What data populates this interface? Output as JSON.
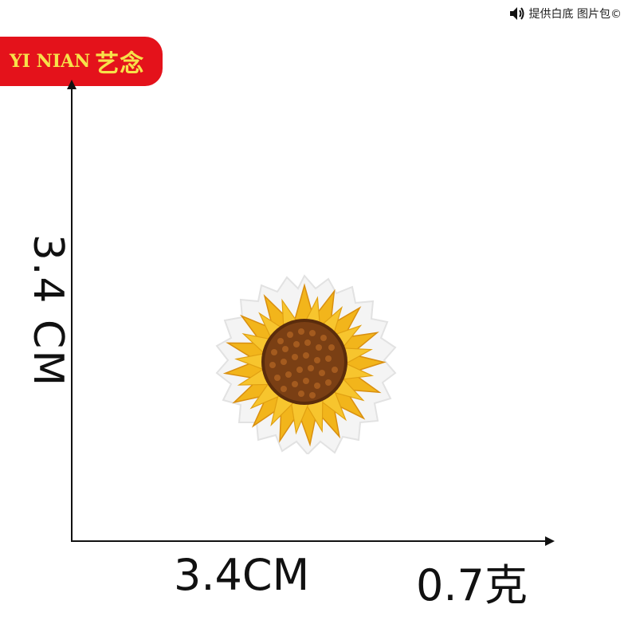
{
  "top_note": {
    "icon": "speaker-icon",
    "text": "提供白底 图片包©"
  },
  "brand": {
    "latin": "YI NIAN",
    "chinese": "艺念"
  },
  "dimensions": {
    "height_label": "3.4 CM",
    "width_label": "3.4CM",
    "weight_label": "0.7克"
  },
  "product": {
    "icon": "sunflower-patch",
    "petal_color": "#f2b51b",
    "center_color": "#7a3f14",
    "border_color": "#f3f3f3"
  }
}
